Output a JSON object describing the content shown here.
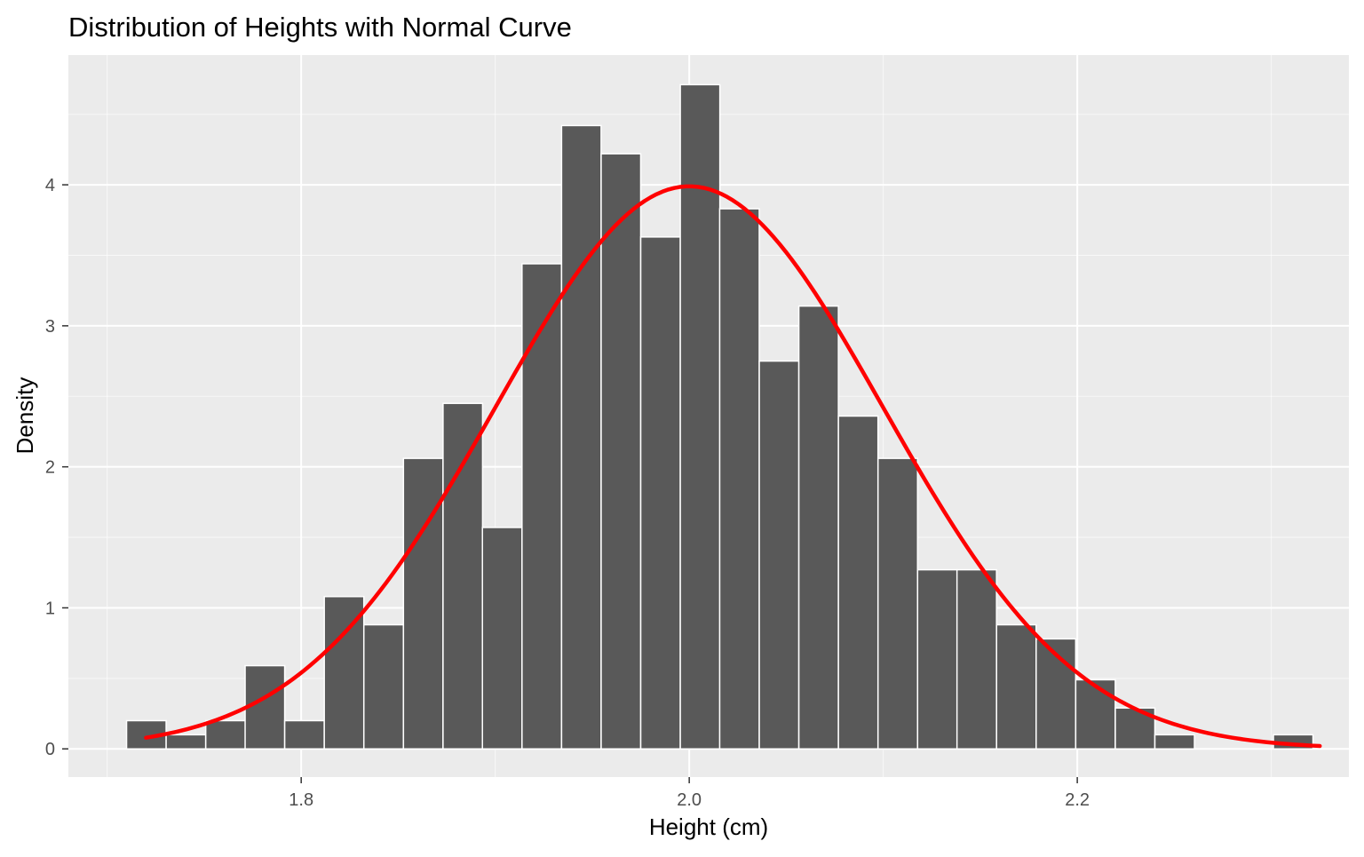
{
  "chart_data": {
    "type": "bar",
    "title": "Distribution of Heights with Normal Curve",
    "xlabel": "Height (cm)",
    "ylabel": "Density",
    "xlim": [
      1.68,
      2.34
    ],
    "ylim": [
      -0.2,
      4.92
    ],
    "x_ticks": [
      1.8,
      2.0,
      2.2
    ],
    "x_tick_labels": [
      "1.8",
      "2.0",
      "2.2"
    ],
    "y_ticks": [
      0,
      1,
      2,
      3,
      4
    ],
    "y_tick_labels": [
      "0",
      "1",
      "2",
      "3",
      "4"
    ],
    "grid": true,
    "bin_width": 0.02038,
    "bins_x0": [
      1.71,
      1.7304,
      1.7508,
      1.7711,
      1.7915,
      1.8119,
      1.8323,
      1.8527,
      1.8731,
      1.8934,
      1.9138,
      1.9342,
      1.9546,
      1.975,
      1.9954,
      2.0157,
      2.0361,
      2.0565,
      2.0769,
      2.0973,
      2.1177,
      2.138,
      2.1584,
      2.1788,
      2.1992,
      2.2196,
      2.24,
      2.2603,
      2.2807,
      2.3011
    ],
    "densities": [
      0.2,
      0.1,
      0.2,
      0.59,
      0.2,
      1.08,
      0.88,
      2.06,
      2.45,
      1.57,
      3.44,
      4.42,
      4.22,
      3.63,
      4.71,
      3.83,
      2.75,
      3.14,
      2.36,
      2.06,
      1.27,
      1.27,
      0.88,
      0.78,
      0.49,
      0.29,
      0.1,
      0.0,
      0.0,
      0.1
    ],
    "bar_fill": "#595959",
    "bar_outline": "#ffffff",
    "series": [
      {
        "name": "Normal curve",
        "type": "line",
        "color": "#ff0000",
        "mean": 2.0,
        "sd": 0.1,
        "x_range": [
          1.72,
          2.325
        ]
      }
    ],
    "panel_background": "#ebebeb",
    "grid_color": "#ffffff"
  }
}
